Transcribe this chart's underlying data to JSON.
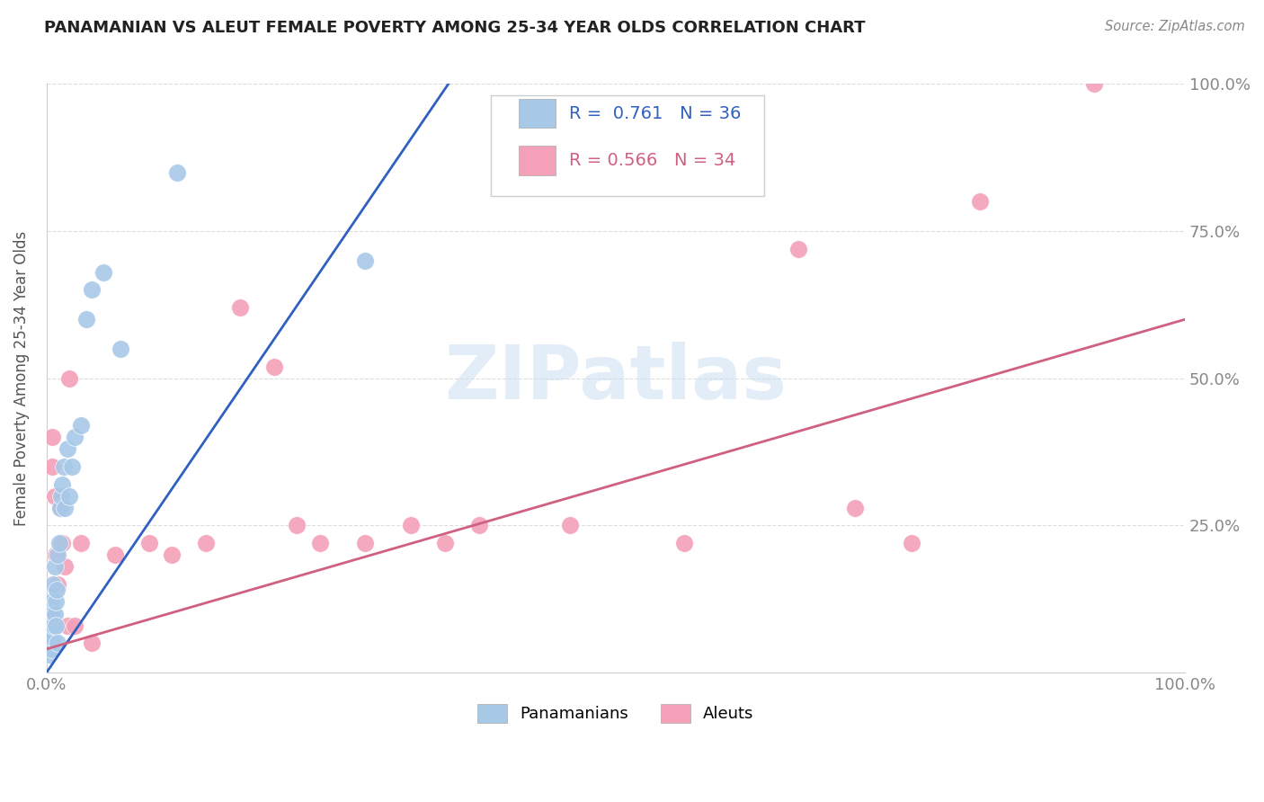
{
  "title": "PANAMANIAN VS ALEUT FEMALE POVERTY AMONG 25-34 YEAR OLDS CORRELATION CHART",
  "source": "Source: ZipAtlas.com",
  "ylabel": "Female Poverty Among 25-34 Year Olds",
  "xlim": [
    0,
    1.0
  ],
  "ylim": [
    0,
    1.0
  ],
  "xticks": [
    0.0,
    0.25,
    0.5,
    0.75,
    1.0
  ],
  "xticklabels": [
    "0.0%",
    "",
    "",
    "",
    "100.0%"
  ],
  "yticks": [
    0.0,
    0.25,
    0.5,
    0.75,
    1.0
  ],
  "yticklabels_right": [
    "",
    "25.0%",
    "50.0%",
    "75.0%",
    "100.0%"
  ],
  "legend_blue_label": "Panamanians",
  "legend_pink_label": "Aleuts",
  "blue_R": "0.761",
  "blue_N": "36",
  "pink_R": "0.566",
  "pink_N": "34",
  "blue_color": "#A8C8E8",
  "pink_color": "#F4A0B8",
  "blue_line_color": "#3060C0",
  "pink_line_color": "#D06080",
  "blue_line_x": [
    0.0,
    0.36
  ],
  "blue_line_y": [
    0.0,
    1.02
  ],
  "pink_line_x": [
    0.0,
    1.0
  ],
  "pink_line_y": [
    0.04,
    0.6
  ],
  "watermark": "ZIPatlas",
  "blue_x": [
    0.001,
    0.002,
    0.002,
    0.003,
    0.003,
    0.004,
    0.004,
    0.004,
    0.005,
    0.005,
    0.006,
    0.006,
    0.007,
    0.007,
    0.008,
    0.008,
    0.009,
    0.01,
    0.01,
    0.011,
    0.012,
    0.013,
    0.014,
    0.015,
    0.016,
    0.018,
    0.02,
    0.022,
    0.025,
    0.03,
    0.035,
    0.04,
    0.05,
    0.065,
    0.115,
    0.28
  ],
  "blue_y": [
    0.05,
    0.03,
    0.08,
    0.1,
    0.05,
    0.07,
    0.12,
    0.04,
    0.1,
    0.06,
    0.15,
    0.08,
    0.1,
    0.18,
    0.08,
    0.12,
    0.14,
    0.05,
    0.2,
    0.22,
    0.28,
    0.3,
    0.32,
    0.35,
    0.28,
    0.38,
    0.3,
    0.35,
    0.4,
    0.42,
    0.6,
    0.65,
    0.68,
    0.55,
    0.85,
    0.7
  ],
  "pink_x": [
    0.003,
    0.005,
    0.005,
    0.006,
    0.007,
    0.008,
    0.01,
    0.012,
    0.014,
    0.016,
    0.018,
    0.02,
    0.025,
    0.03,
    0.04,
    0.06,
    0.09,
    0.11,
    0.14,
    0.17,
    0.2,
    0.22,
    0.24,
    0.28,
    0.32,
    0.35,
    0.38,
    0.46,
    0.56,
    0.66,
    0.71,
    0.76,
    0.82,
    0.92
  ],
  "pink_y": [
    0.05,
    0.4,
    0.35,
    0.1,
    0.3,
    0.2,
    0.15,
    0.28,
    0.22,
    0.18,
    0.08,
    0.5,
    0.08,
    0.22,
    0.05,
    0.2,
    0.22,
    0.2,
    0.22,
    0.62,
    0.52,
    0.25,
    0.22,
    0.22,
    0.25,
    0.22,
    0.25,
    0.25,
    0.22,
    0.72,
    0.28,
    0.22,
    0.8,
    1.0
  ],
  "background_color": "#FFFFFF",
  "grid_color": "#DDDDDD",
  "title_color": "#222222",
  "axis_label_color": "#555555",
  "tick_color": "#888888"
}
